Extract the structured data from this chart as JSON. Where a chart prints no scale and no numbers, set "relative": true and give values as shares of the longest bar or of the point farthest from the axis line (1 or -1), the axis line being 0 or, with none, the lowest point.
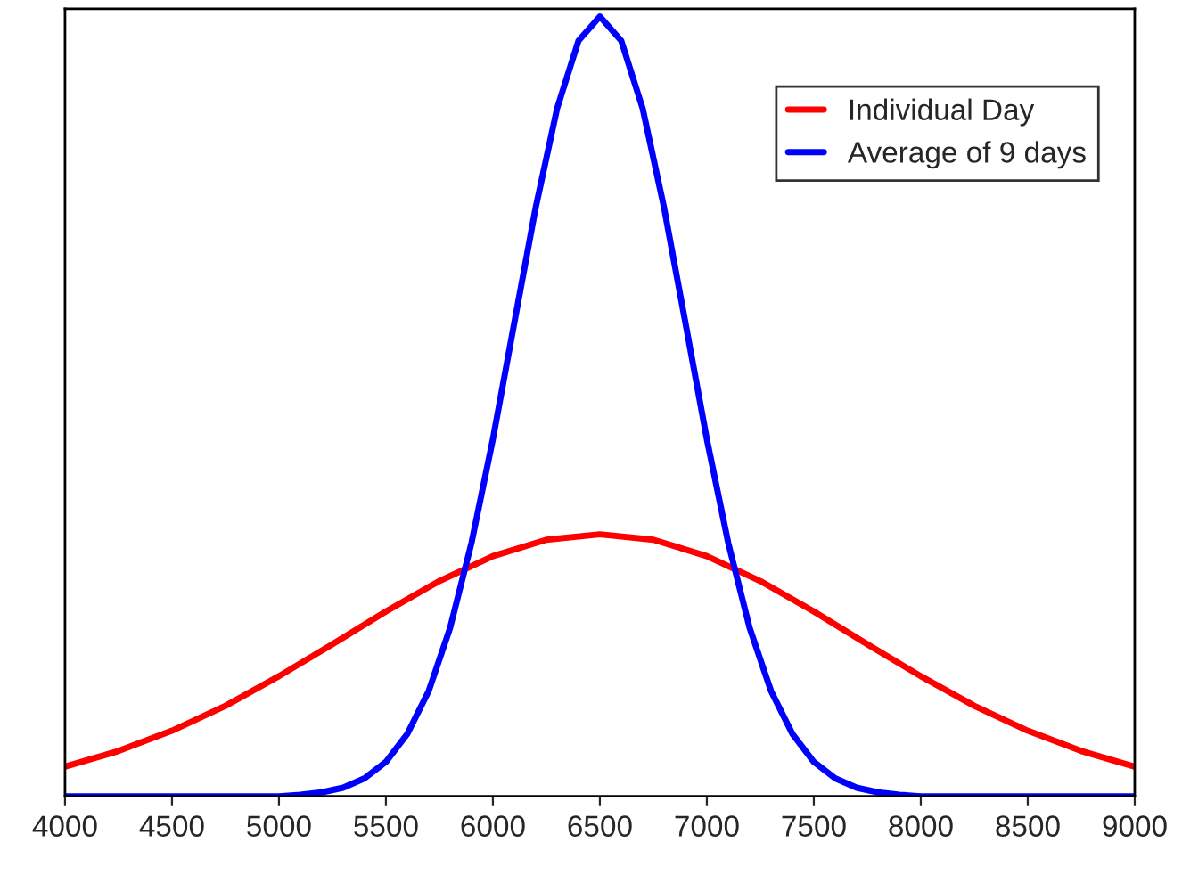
{
  "chart_data": {
    "type": "line",
    "relative": true,
    "xlim": [
      4000,
      9000
    ],
    "xticks": [
      4000,
      4500,
      5000,
      5500,
      6000,
      6500,
      7000,
      7500,
      8000,
      8500,
      9000
    ],
    "tick_labels": "x",
    "grid": false,
    "legend": "top right",
    "marker": "none",
    "line_style": "solid",
    "series": [
      {
        "name": "Individual Day",
        "color": "#ff0000",
        "x": [
          4000,
          4250,
          4500,
          4750,
          5000,
          5250,
          5500,
          5750,
          6000,
          6250,
          6500,
          6750,
          7000,
          7250,
          7500,
          7750,
          8000,
          8250,
          8500,
          8750,
          9000
        ],
        "values": [
          0.038,
          0.058,
          0.084,
          0.116,
          0.154,
          0.195,
          0.237,
          0.276,
          0.308,
          0.329,
          0.336,
          0.329,
          0.308,
          0.276,
          0.237,
          0.195,
          0.154,
          0.116,
          0.084,
          0.058,
          0.038
        ]
      },
      {
        "name": "Average of 9 days",
        "color": "#0000ff",
        "x": [
          4000,
          5000,
          5100,
          5200,
          5300,
          5400,
          5500,
          5600,
          5700,
          5800,
          5900,
          6000,
          6100,
          6200,
          6300,
          6400,
          6500,
          6600,
          6700,
          6800,
          6900,
          7000,
          7100,
          7200,
          7300,
          7400,
          7500,
          7600,
          7700,
          7800,
          7900,
          8000,
          9000
        ],
        "values": [
          0,
          0,
          0.002,
          0.005,
          0.011,
          0.023,
          0.044,
          0.08,
          0.135,
          0.216,
          0.325,
          0.458,
          0.607,
          0.755,
          0.882,
          0.969,
          1,
          0.969,
          0.882,
          0.755,
          0.607,
          0.458,
          0.325,
          0.216,
          0.135,
          0.08,
          0.044,
          0.023,
          0.011,
          0.005,
          0.002,
          0,
          0
        ]
      }
    ]
  }
}
